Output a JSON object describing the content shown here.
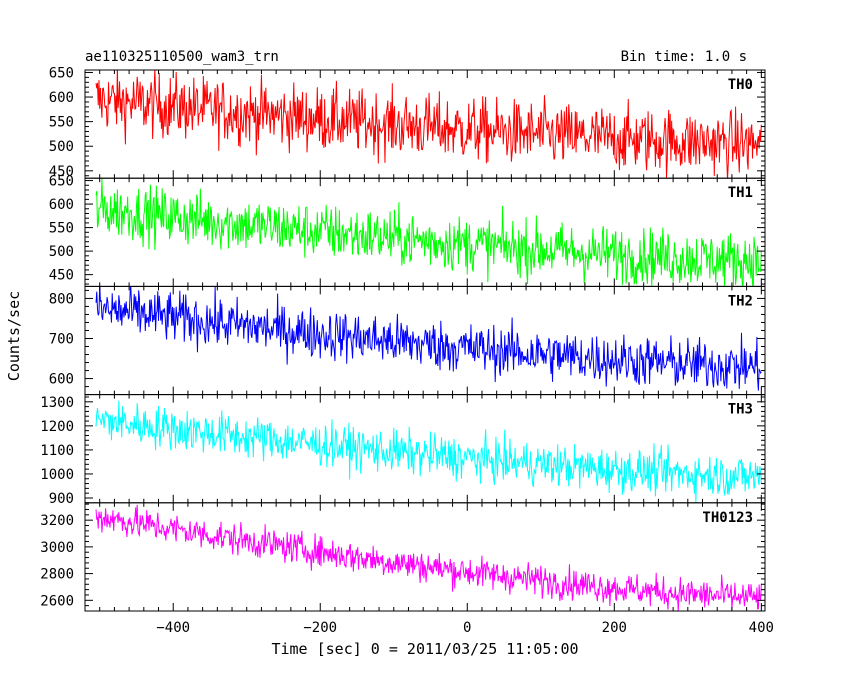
{
  "header": {
    "title": "ae110325110500_wam3_trn",
    "bin_time": "Bin time: 1.0 s"
  },
  "chart_data": {
    "type": "line",
    "xlabel": "Time [sec] 0 = 2011/03/25 11:05:00",
    "ylabel": "Counts/sec",
    "xlim": [
      -520,
      405
    ],
    "xticks": [
      -400,
      -200,
      0,
      200,
      400
    ],
    "x_start": -505,
    "x_end": 400,
    "panels": [
      {
        "name": "TH0",
        "color": "#ff0000",
        "ylim": [
          435,
          655
        ],
        "yticks": [
          450,
          500,
          550,
          600,
          650
        ],
        "start_mean": 595,
        "end_mean": 505,
        "noise": 33
      },
      {
        "name": "TH1",
        "color": "#00ff00",
        "ylim": [
          425,
          655
        ],
        "yticks": [
          450,
          500,
          550,
          600,
          650
        ],
        "start_mean": 590,
        "end_mean": 480,
        "noise": 30
      },
      {
        "name": "TH2",
        "color": "#0000ff",
        "ylim": [
          560,
          830
        ],
        "yticks": [
          600,
          700,
          800
        ],
        "start_mean": 775,
        "end_mean": 630,
        "noise": 32
      },
      {
        "name": "TH3",
        "color": "#00ffff",
        "ylim": [
          880,
          1330
        ],
        "yticks": [
          900,
          1000,
          1100,
          1200,
          1300
        ],
        "start_mean": 1225,
        "end_mean": 990,
        "noise": 45
      },
      {
        "name": "TH0123",
        "color": "#ff00ff",
        "ylim": [
          2520,
          3330
        ],
        "yticks": [
          2600,
          2800,
          3000,
          3200
        ],
        "start_mean": 3230,
        "end_mean": 2620,
        "noise": 60
      }
    ]
  }
}
